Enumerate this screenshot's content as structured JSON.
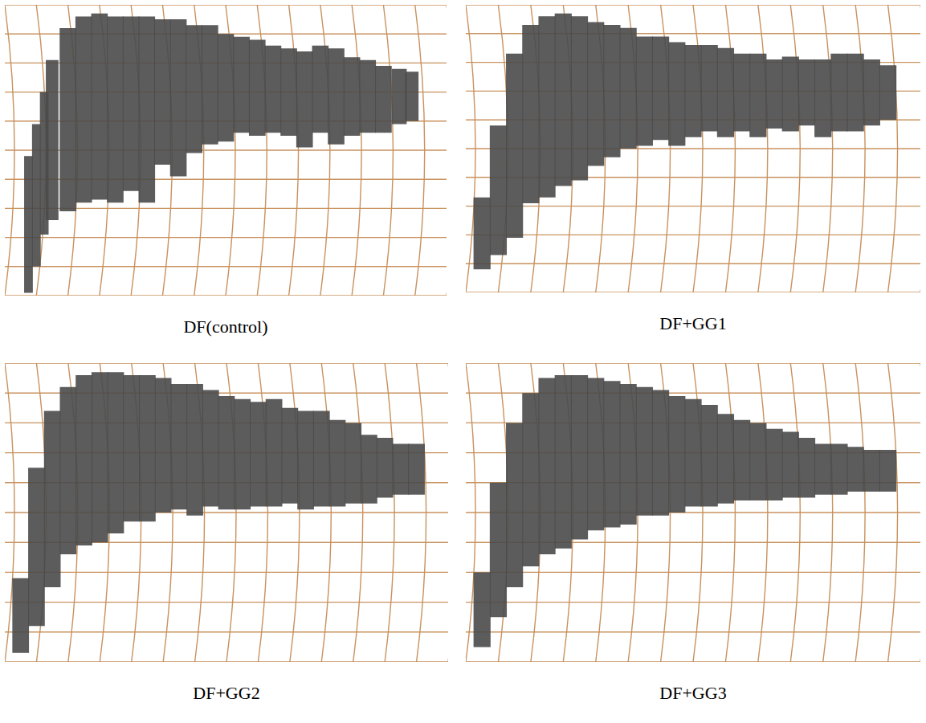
{
  "chart_data": [
    {
      "type": "band",
      "title": "DF(control)",
      "x": [
        0.75,
        1,
        1.25,
        1.5,
        2,
        2.5,
        3,
        3.5,
        4,
        4.5,
        5,
        5.5,
        6,
        6.5,
        7,
        7.5,
        8,
        8.5,
        9,
        9.5,
        10,
        10.5,
        11,
        11.5,
        12,
        12.5,
        12.9
      ],
      "series": [
        {
          "color": "#4a4a4a",
          "values": [
            4.8,
            5.9,
            7.0,
            8.1,
            9.2,
            9.6,
            9.7,
            9.6,
            9.6,
            9.6,
            9.5,
            9.5,
            9.3,
            9.3,
            9.0,
            8.9,
            8.8,
            8.6,
            8.5,
            8.4,
            8.6,
            8.5,
            8.2,
            8.1,
            7.9,
            7.8,
            7.7
          ]
        },
        {
          "color": "#4a4a4a",
          "values": [
            0.1,
            1.0,
            2.1,
            2.6,
            2.9,
            3.2,
            3.3,
            3.2,
            3.6,
            3.2,
            4.5,
            4.1,
            4.9,
            5.2,
            5.3,
            5.6,
            5.5,
            5.6,
            5.5,
            5.1,
            5.6,
            5.2,
            5.5,
            5.6,
            5.6,
            5.9,
            6.0
          ]
        }
      ],
      "xlim": [
        0,
        14
      ],
      "ylim": [
        0,
        10
      ],
      "xticks": [
        0,
        1,
        2,
        3,
        4,
        5,
        6,
        7,
        8,
        9,
        10,
        11,
        12,
        13,
        14
      ],
      "yticks": [
        0,
        1,
        2,
        3,
        4,
        5,
        6,
        7,
        8,
        9,
        10
      ],
      "grid": true,
      "tick_labels": false
    },
    {
      "type": "band",
      "title": "DF+GG1",
      "x": [
        0.5,
        1,
        1.5,
        2,
        2.5,
        3,
        3.5,
        4,
        4.5,
        5,
        5.5,
        6,
        6.5,
        7,
        7.5,
        8,
        8.5,
        9,
        9.5,
        10,
        10.5,
        11,
        11.5,
        12,
        12.5,
        13
      ],
      "series": [
        {
          "color": "#4a4a4a",
          "values": [
            3.3,
            5.8,
            8.3,
            9.3,
            9.6,
            9.7,
            9.6,
            9.4,
            9.3,
            9.2,
            8.9,
            8.9,
            8.7,
            8.6,
            8.6,
            8.5,
            8.3,
            8.3,
            8.1,
            8.2,
            8.1,
            8.1,
            8.3,
            8.3,
            8.1,
            7.9
          ]
        },
        {
          "color": "#4a4a4a",
          "values": [
            0.8,
            1.3,
            1.9,
            3.1,
            3.3,
            3.7,
            3.9,
            4.4,
            4.7,
            5.0,
            5.1,
            5.3,
            5.1,
            5.4,
            5.6,
            5.4,
            5.6,
            5.4,
            5.7,
            5.6,
            5.8,
            5.4,
            5.6,
            5.6,
            5.8,
            6.0
          ]
        }
      ],
      "xlim": [
        0,
        14
      ],
      "ylim": [
        0,
        10
      ],
      "xticks": [
        0,
        1,
        2,
        3,
        4,
        5,
        6,
        7,
        8,
        9,
        10,
        11,
        12,
        13,
        14
      ],
      "yticks": [
        0,
        1,
        2,
        3,
        4,
        5,
        6,
        7,
        8,
        9,
        10
      ],
      "grid": true,
      "tick_labels": false
    },
    {
      "type": "band",
      "title": "DF+GG2",
      "x": [
        0.5,
        1,
        1.5,
        2,
        2.5,
        3,
        3.5,
        4,
        4.5,
        5,
        5.5,
        6,
        6.5,
        7,
        7.5,
        8,
        8.5,
        9,
        9.5,
        10,
        10.5,
        11,
        11.5,
        12,
        12.5,
        13
      ],
      "series": [
        {
          "color": "#4a4a4a",
          "values": [
            2.8,
            6.5,
            8.4,
            9.2,
            9.6,
            9.7,
            9.7,
            9.6,
            9.6,
            9.5,
            9.3,
            9.3,
            9.1,
            8.9,
            8.8,
            8.7,
            8.8,
            8.5,
            8.4,
            8.4,
            8.1,
            8.0,
            7.6,
            7.5,
            7.3,
            7.3
          ]
        },
        {
          "color": "#4a4a4a",
          "values": [
            0.3,
            1.2,
            2.5,
            3.6,
            3.9,
            4.0,
            4.3,
            4.7,
            4.7,
            5.0,
            5.1,
            4.9,
            5.2,
            5.1,
            5.1,
            5.2,
            5.2,
            5.3,
            5.1,
            5.2,
            5.2,
            5.3,
            5.3,
            5.5,
            5.6,
            5.6
          ]
        }
      ],
      "xlim": [
        0,
        14
      ],
      "ylim": [
        0,
        10
      ],
      "xticks": [
        0,
        1,
        2,
        3,
        4,
        5,
        6,
        7,
        8,
        9,
        10,
        11,
        12,
        13,
        14
      ],
      "yticks": [
        0,
        1,
        2,
        3,
        4,
        5,
        6,
        7,
        8,
        9,
        10
      ],
      "grid": true,
      "tick_labels": false
    },
    {
      "type": "band",
      "title": "DF+GG3",
      "x": [
        0.5,
        1,
        1.5,
        2,
        2.5,
        3,
        3.5,
        4,
        4.5,
        5,
        5.5,
        6,
        6.5,
        7,
        7.5,
        8,
        8.5,
        9,
        9.5,
        10,
        10.5,
        11,
        11.5,
        12,
        12.5,
        13
      ],
      "series": [
        {
          "color": "#4a4a4a",
          "values": [
            3.0,
            6.0,
            8.0,
            9.0,
            9.5,
            9.6,
            9.6,
            9.5,
            9.4,
            9.3,
            9.2,
            9.1,
            8.9,
            8.8,
            8.6,
            8.3,
            8.1,
            8.0,
            7.8,
            7.7,
            7.5,
            7.3,
            7.3,
            7.2,
            7.1,
            7.1
          ]
        },
        {
          "color": "#4a4a4a",
          "values": [
            0.5,
            1.5,
            2.5,
            3.2,
            3.6,
            3.8,
            4.1,
            4.4,
            4.5,
            4.6,
            4.9,
            4.9,
            5.0,
            5.2,
            5.2,
            5.3,
            5.4,
            5.4,
            5.4,
            5.5,
            5.5,
            5.6,
            5.6,
            5.7,
            5.7,
            5.7
          ]
        }
      ],
      "xlim": [
        0,
        14
      ],
      "ylim": [
        0,
        10
      ],
      "xticks": [
        0,
        1,
        2,
        3,
        4,
        5,
        6,
        7,
        8,
        9,
        10,
        11,
        12,
        13,
        14
      ],
      "yticks": [
        0,
        1,
        2,
        3,
        4,
        5,
        6,
        7,
        8,
        9,
        10
      ],
      "grid": true,
      "tick_labels": false
    }
  ]
}
